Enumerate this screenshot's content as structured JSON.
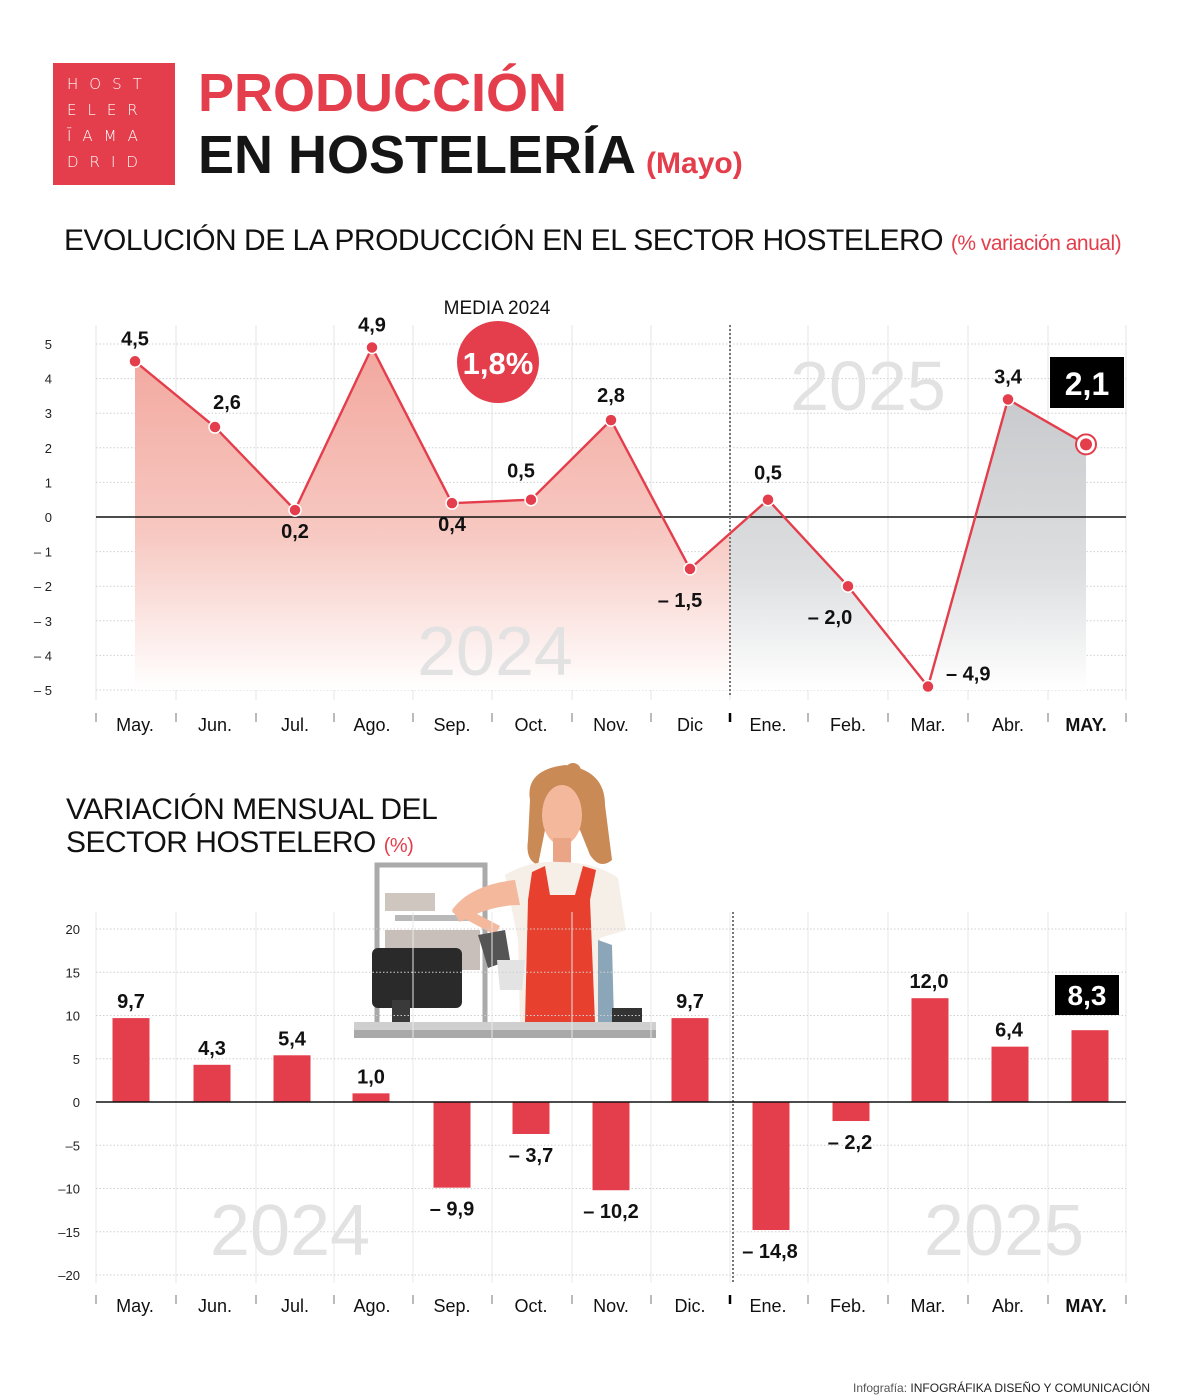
{
  "logo": {
    "rows": [
      "HOST",
      "ELER",
      "ĪAMA",
      "DRID"
    ]
  },
  "header": {
    "title_line1": "PRODUCCIÓN",
    "title_line2": "EN HOSTELERÍA",
    "title_sub": "(Mayo)"
  },
  "section1": {
    "title": "EVOLUCIÓN DE LA PRODUCCIÓN EN EL SECTOR HOSTELERO",
    "unit": "(% variación anual)"
  },
  "section2": {
    "title_line1": "VARIACIÓN MENSUAL DEL",
    "title_line2": "SECTOR HOSTELERO",
    "unit": "(%)"
  },
  "credit": {
    "prefix": "Infografía:",
    "name": "INFOGRÁFIKA DISEÑO Y COMUNICACIÓN"
  },
  "colors": {
    "accent": "#e43d4b",
    "fill_2024": "#f4b5ae",
    "fill_2025": "#cfd0d3",
    "grid": "#d8d8d8",
    "watermark": "#e2e2e2"
  },
  "chart_data": [
    {
      "type": "line",
      "title": "EVOLUCIÓN DE LA PRODUCCIÓN EN EL SECTOR HOSTELERO (% variación anual)",
      "categories": [
        "May.",
        "Jun.",
        "Jul.",
        "Ago.",
        "Sep.",
        "Oct.",
        "Nov.",
        "Dic",
        "Ene.",
        "Feb.",
        "Mar.",
        "Abr.",
        "MAY."
      ],
      "values": [
        4.5,
        2.6,
        0.2,
        4.9,
        0.4,
        0.5,
        2.8,
        -1.5,
        0.5,
        -2.0,
        -4.9,
        3.4,
        2.1
      ],
      "labels": [
        "4,5",
        "2,6",
        "0,2",
        "4,9",
        "0,4",
        "0,5",
        "2,8",
        "– 1,5",
        "0,5",
        "– 2,0",
        "– 4,9",
        "3,4",
        "2,1"
      ],
      "yticks": [
        "5",
        "4",
        "3",
        "2",
        "1",
        "0",
        "– 1",
        "– 2",
        "– 3",
        "– 4",
        "– 5"
      ],
      "ylim": [
        -5,
        5
      ],
      "annotations": {
        "media_label": "MEDIA 2024",
        "media_value": "1,8%",
        "highlight": "2,1",
        "watermark_2024": "2024",
        "watermark_2025": "2025"
      },
      "grid": true
    },
    {
      "type": "bar",
      "title": "VARIACIÓN MENSUAL DEL SECTOR HOSTELERO (%)",
      "categories": [
        "May.",
        "Jun.",
        "Jul.",
        "Ago.",
        "Sep.",
        "Oct.",
        "Nov.",
        "Dic.",
        "Ene.",
        "Feb.",
        "Mar.",
        "Abr.",
        "MAY."
      ],
      "values": [
        9.7,
        4.3,
        5.4,
        1.0,
        -9.9,
        -3.7,
        -10.2,
        9.7,
        -14.8,
        -2.2,
        12.0,
        6.4,
        8.3
      ],
      "labels": [
        "9,7",
        "4,3",
        "5,4",
        "1,0",
        "– 9,9",
        "– 3,7",
        "– 10,2",
        "9,7",
        "– 14,8",
        "– 2,2",
        "12,0",
        "6,4",
        "8,3"
      ],
      "yticks": [
        "20",
        "15",
        "10",
        "5",
        "0",
        "–5",
        "–10",
        "–15",
        "–20"
      ],
      "ylim": [
        -20,
        20
      ],
      "annotations": {
        "highlight": "8,3",
        "watermark_2024": "2024",
        "watermark_2025": "2025"
      },
      "grid": true
    }
  ]
}
